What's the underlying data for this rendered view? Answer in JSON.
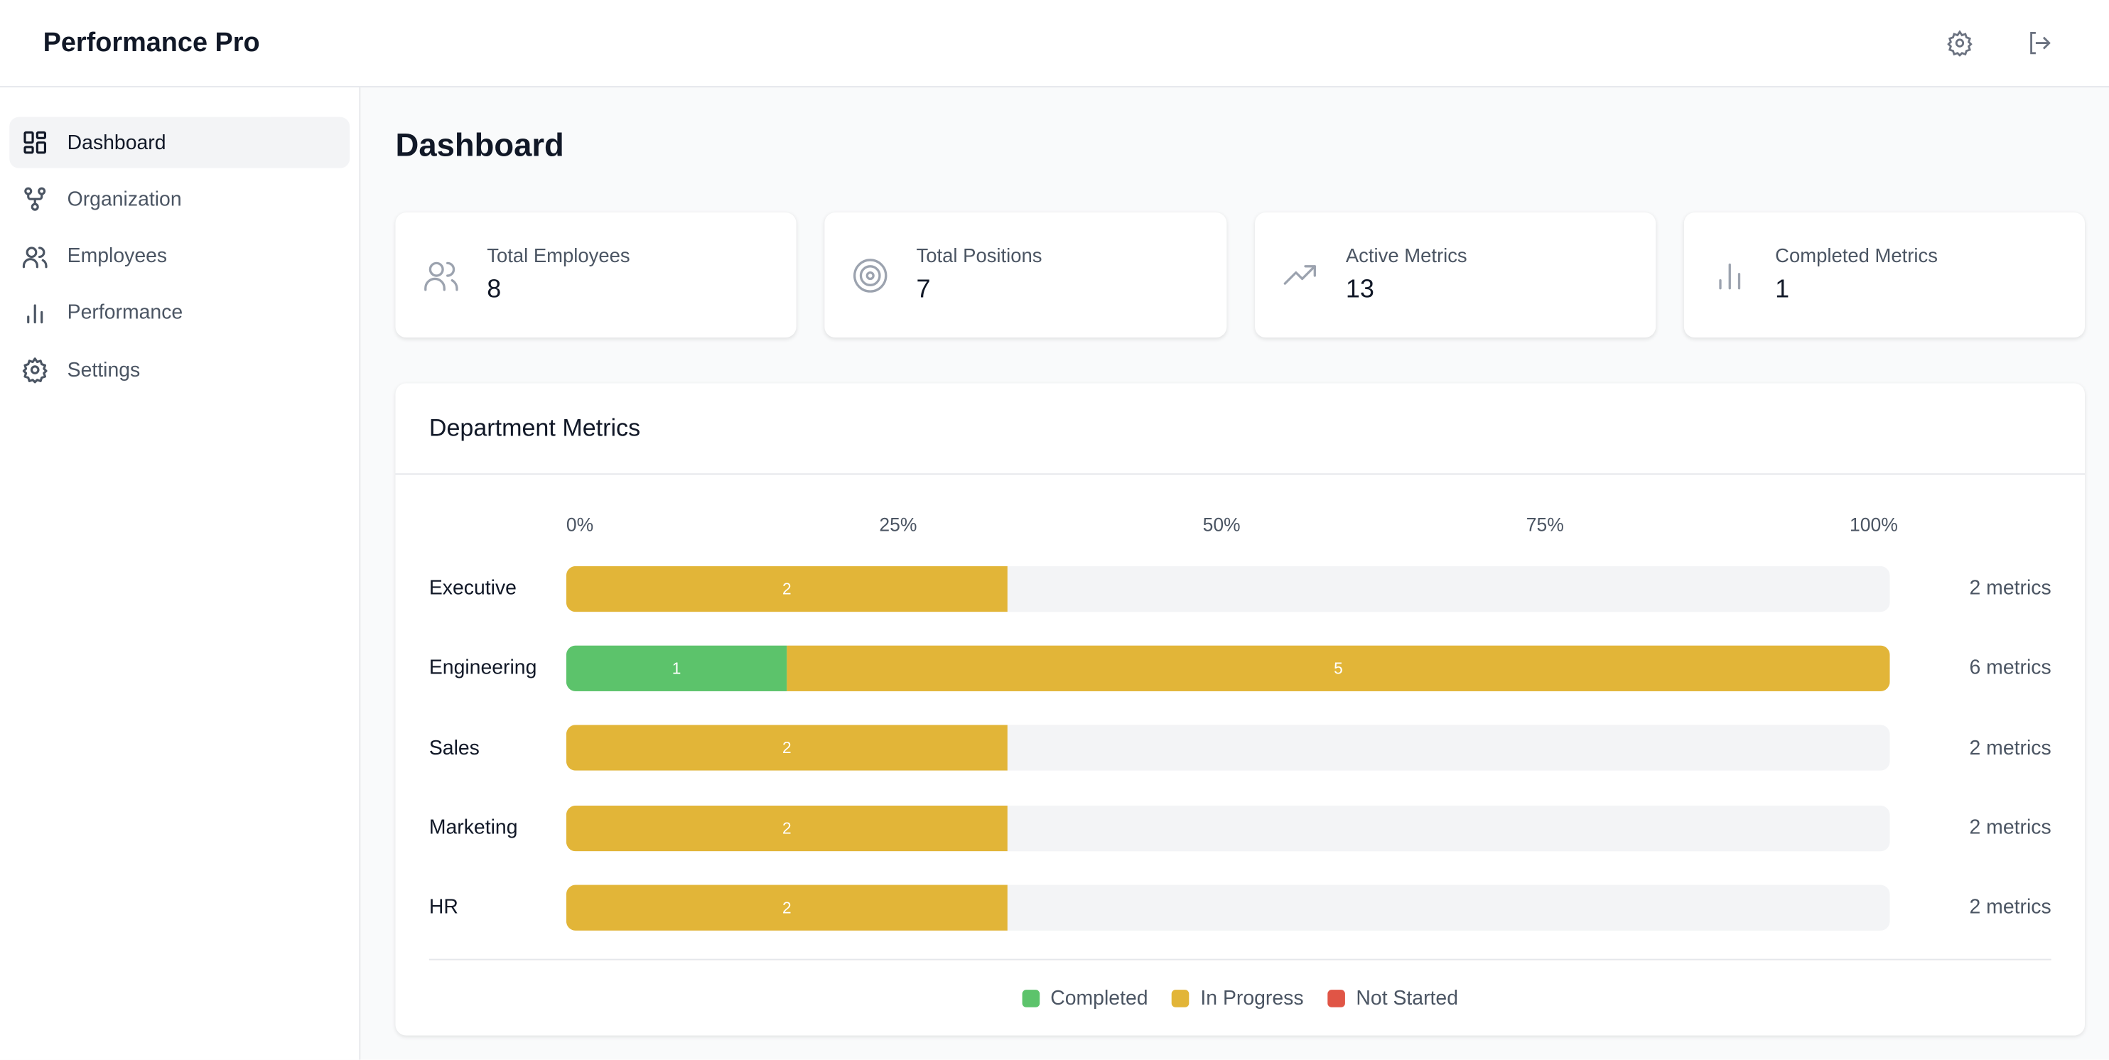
{
  "app": {
    "title": "Performance Pro"
  },
  "header": {
    "icons": [
      "gear-icon",
      "logout-icon"
    ]
  },
  "sidebar": {
    "items": [
      {
        "label": "Dashboard",
        "icon": "dashboard-icon",
        "active": true
      },
      {
        "label": "Organization",
        "icon": "org-icon"
      },
      {
        "label": "Employees",
        "icon": "users-icon"
      },
      {
        "label": "Performance",
        "icon": "bar-chart-icon"
      },
      {
        "label": "Settings",
        "icon": "gear-icon"
      }
    ]
  },
  "page": {
    "title": "Dashboard"
  },
  "stats": [
    {
      "label": "Total Employees",
      "value": "8",
      "icon": "users-icon"
    },
    {
      "label": "Total Positions",
      "value": "7",
      "icon": "target-icon"
    },
    {
      "label": "Active Metrics",
      "value": "13",
      "icon": "trending-up-icon"
    },
    {
      "label": "Completed Metrics",
      "value": "1",
      "icon": "bar-chart-icon"
    }
  ],
  "colors": {
    "completed": "#5cc36b",
    "in_progress": "#e2b538",
    "not_started": "#e05546"
  },
  "chart_data": {
    "type": "bar",
    "title": "Department Metrics",
    "stacked": true,
    "orientation": "horizontal",
    "tick_labels": [
      "0%",
      "25%",
      "50%",
      "75%",
      "100%"
    ],
    "max": 6,
    "categories": [
      "Executive",
      "Engineering",
      "Sales",
      "Marketing",
      "HR"
    ],
    "series": [
      {
        "name": "Completed",
        "key": "completed",
        "values": [
          0,
          1,
          0,
          0,
          0
        ]
      },
      {
        "name": "In Progress",
        "key": "in_progress",
        "values": [
          2,
          5,
          2,
          2,
          2
        ]
      },
      {
        "name": "Not Started",
        "key": "not_started",
        "values": [
          0,
          0,
          0,
          0,
          0
        ]
      }
    ],
    "totals": [
      "2 metrics",
      "6 metrics",
      "2 metrics",
      "2 metrics",
      "2 metrics"
    ],
    "legend": [
      "Completed",
      "In Progress",
      "Not Started"
    ]
  }
}
